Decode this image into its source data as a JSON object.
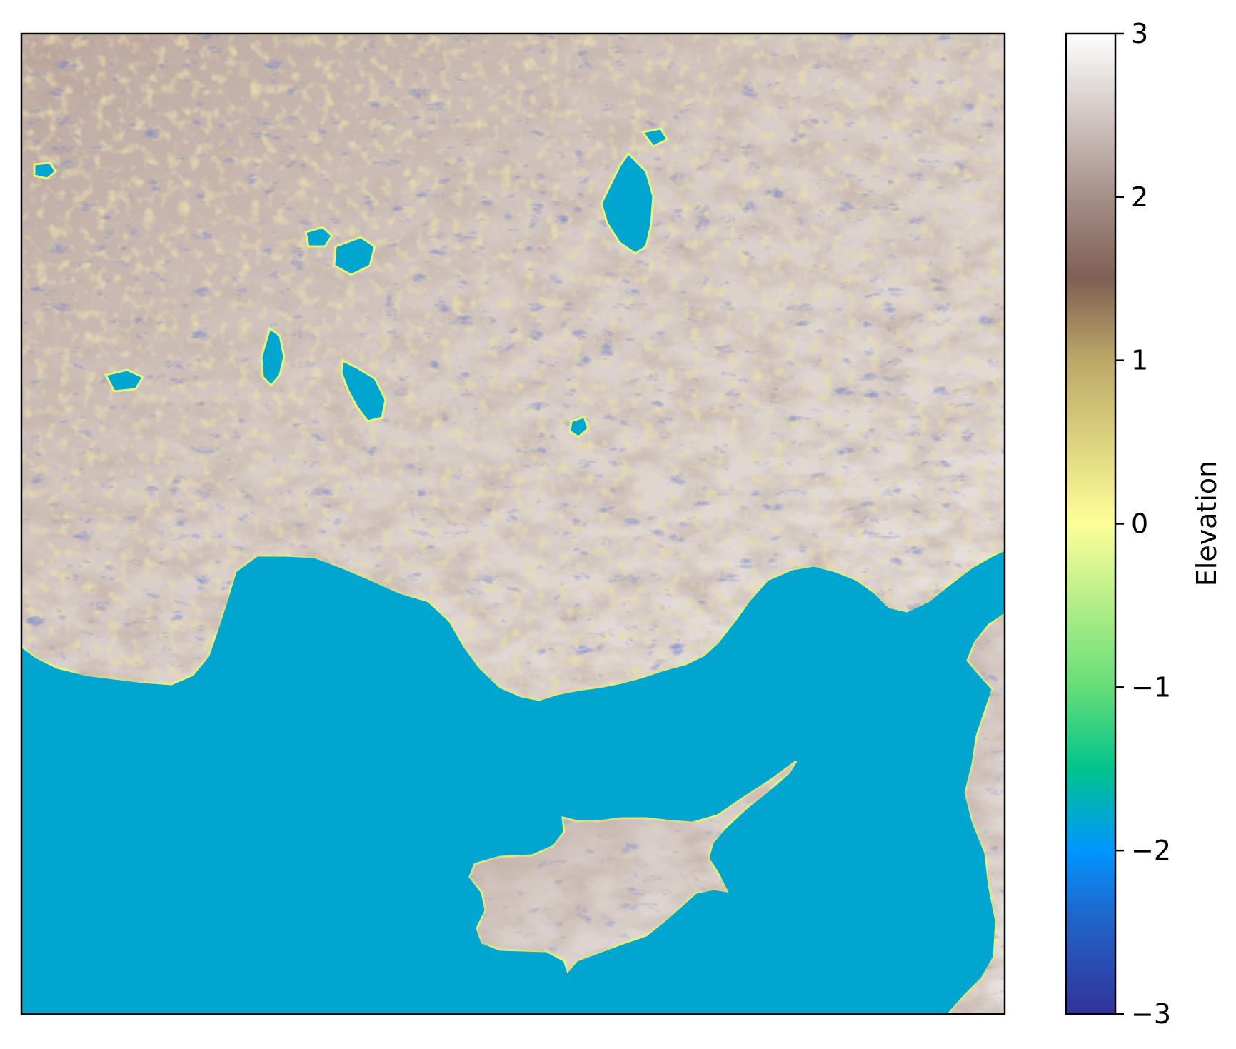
{
  "map": {
    "colormap": "terrain",
    "sea_color": "#00a6cf",
    "land_low_color": "#c9b27a",
    "land_mid_color": "#8a6a58",
    "land_high_color": "#f6f3f1",
    "ridge_dark_color": "#2b3a9a",
    "coast_color": "#e8f27a"
  },
  "colorbar": {
    "label": "Elevation",
    "vmin": -3,
    "vmax": 3,
    "ticks": [
      {
        "value": 3,
        "label": "3"
      },
      {
        "value": 2,
        "label": "2"
      },
      {
        "value": 1,
        "label": "1"
      },
      {
        "value": 0,
        "label": "0"
      },
      {
        "value": -1,
        "label": "−1"
      },
      {
        "value": -2,
        "label": "−2"
      },
      {
        "value": -3,
        "label": "−3"
      }
    ],
    "stops": [
      {
        "value": -3,
        "color": "#333399"
      },
      {
        "value": -2.4,
        "color": "#1f66cc"
      },
      {
        "value": -2,
        "color": "#0096fe"
      },
      {
        "value": -1.5,
        "color": "#00c38c"
      },
      {
        "value": -1,
        "color": "#66dd78"
      },
      {
        "value": 0,
        "color": "#fefe98"
      },
      {
        "value": 1,
        "color": "#bca868"
      },
      {
        "value": 1.5,
        "color": "#7f5f54"
      },
      {
        "value": 2,
        "color": "#a68f88"
      },
      {
        "value": 3,
        "color": "#fefefe"
      }
    ]
  }
}
